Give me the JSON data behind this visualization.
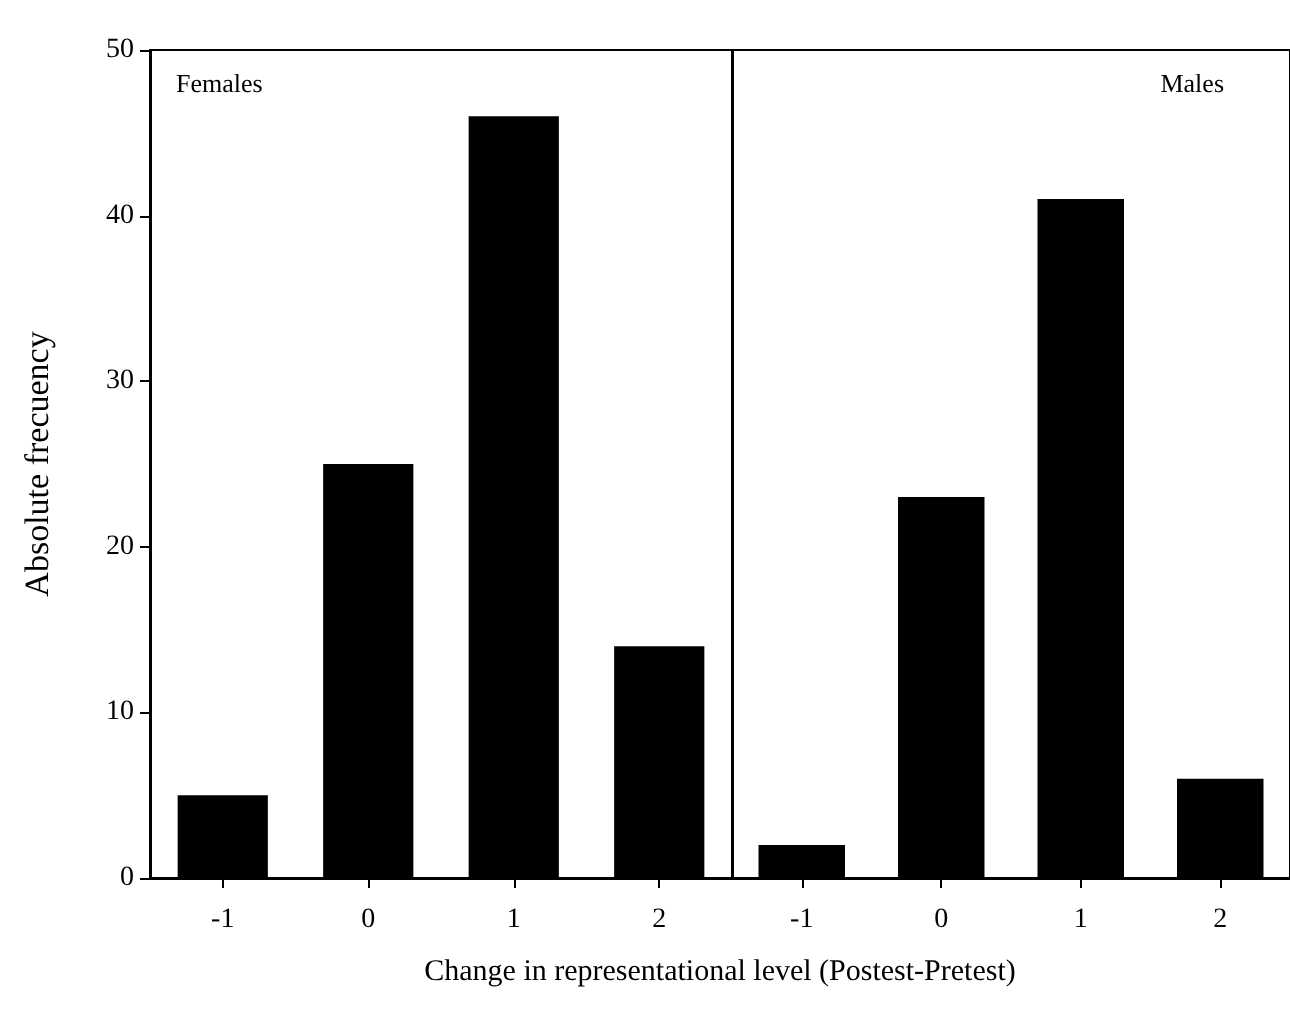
{
  "chart_data": [
    {
      "type": "bar",
      "title": "Females",
      "categories": [
        "-1",
        "0",
        "1",
        "2"
      ],
      "values": [
        5,
        25,
        46,
        14
      ],
      "color": "#000000",
      "ylim": [
        0,
        50
      ],
      "yticks": [
        0,
        10,
        20,
        30,
        40,
        50
      ],
      "ylabel": "Absolute frecuency",
      "xlabel": "Change in representational level (Postest-Pretest)",
      "grid": false
    },
    {
      "type": "bar",
      "title": "Males",
      "categories": [
        "-1",
        "0",
        "1",
        "2"
      ],
      "values": [
        2,
        23,
        41,
        6
      ],
      "color": "#000000",
      "ylim": [
        0,
        50
      ],
      "yticks": [
        0,
        10,
        20,
        30,
        40,
        50
      ],
      "tick_labels": "x",
      "grid": false
    }
  ]
}
